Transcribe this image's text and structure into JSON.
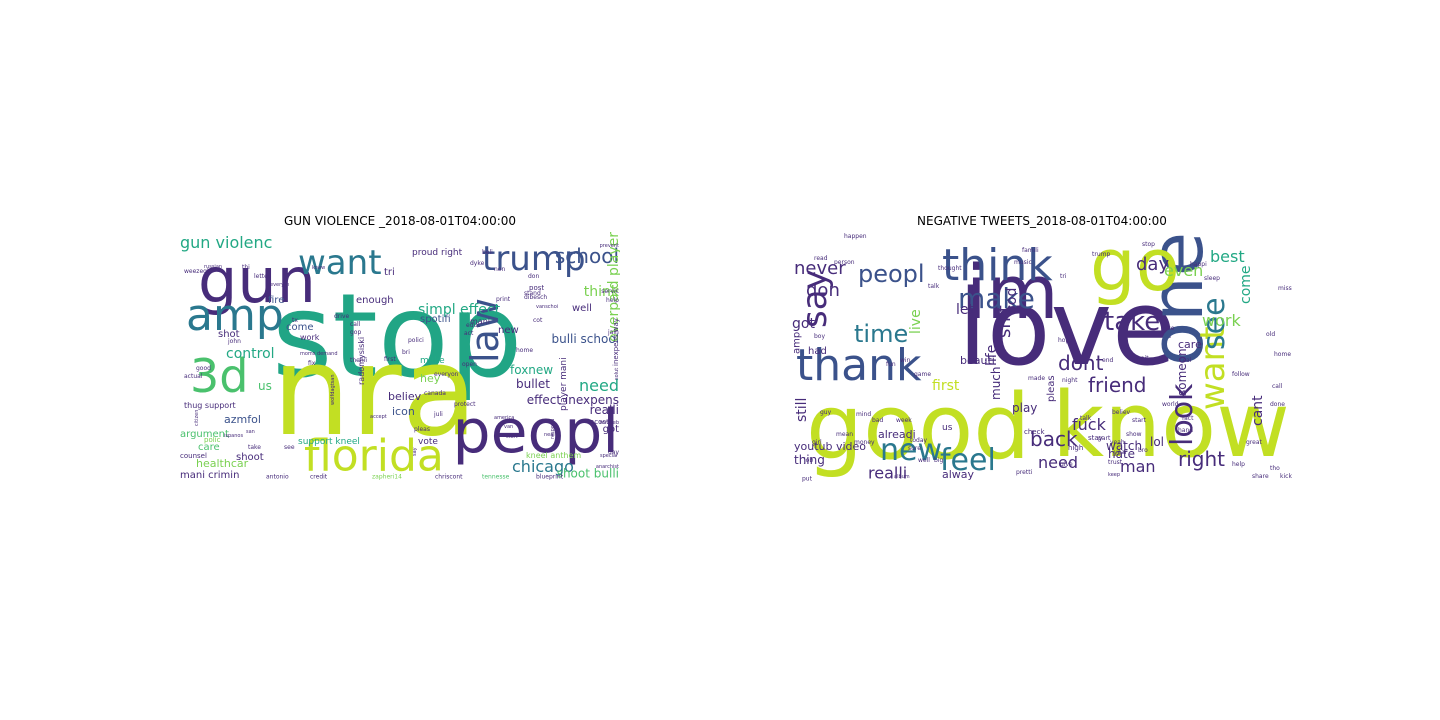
{
  "figure": {
    "panels": [
      {
        "title": "GUN VIOLENCE _2018-08-01T04:00:00",
        "words": [
          {
            "t": "stop",
            "c": "#21a585"
          },
          {
            "t": "nra",
            "c": "#c2df23"
          },
          {
            "t": "gun",
            "c": "#472c7a"
          },
          {
            "t": "peopl",
            "c": "#472c7a"
          },
          {
            "t": "florida",
            "c": "#c2df23"
          },
          {
            "t": "amp",
            "c": "#2a788e"
          },
          {
            "t": "3d",
            "c": "#4ac16d"
          },
          {
            "t": "want",
            "c": "#2a788e"
          },
          {
            "t": "trump",
            "c": "#3b528b"
          },
          {
            "t": "law",
            "c": "#3b528b"
          },
          {
            "t": "school",
            "c": "#3b528b"
          },
          {
            "t": "gun violenc",
            "c": "#22a884"
          },
          {
            "t": "control",
            "c": "#22a884"
          },
          {
            "t": "chicago",
            "c": "#2a788e"
          },
          {
            "t": "simpl effect",
            "c": "#22a884"
          },
          {
            "t": "think",
            "c": "#7ad151"
          },
          {
            "t": "need",
            "c": "#22a884"
          },
          {
            "t": "bulli school",
            "c": "#3b528b"
          },
          {
            "t": "effect inexpens",
            "c": "#472c7a"
          },
          {
            "t": "shoot bulli",
            "c": "#4ac16d"
          },
          {
            "t": "foxnew",
            "c": "#22a884"
          },
          {
            "t": "realli",
            "c": "#472c7a"
          },
          {
            "t": "bullet",
            "c": "#472c7a"
          },
          {
            "t": "fire",
            "c": "#3b528b"
          },
          {
            "t": "azmfol",
            "c": "#3b528b"
          },
          {
            "t": "argument",
            "c": "#4ac16d"
          },
          {
            "t": "healthcar",
            "c": "#7ad151"
          },
          {
            "t": "mani crimin",
            "c": "#472c7a"
          },
          {
            "t": "shoot",
            "c": "#472c7a"
          },
          {
            "t": "care",
            "c": "#4ac16d"
          },
          {
            "t": "icon",
            "c": "#3b528b"
          },
          {
            "t": "believ",
            "c": "#472c7a"
          },
          {
            "t": "us",
            "c": "#4ac16d"
          },
          {
            "t": "hey",
            "c": "#7ad151"
          },
          {
            "t": "enough",
            "c": "#472c7a"
          },
          {
            "t": "spotifi",
            "c": "#3b528b"
          },
          {
            "t": "overpaid player",
            "c": "#7ad151"
          },
          {
            "t": "got",
            "c": "#472c7a"
          },
          {
            "t": "well",
            "c": "#472c7a"
          },
          {
            "t": "shot",
            "c": "#472c7a"
          },
          {
            "t": "come",
            "c": "#3b528b"
          },
          {
            "t": "tri",
            "c": "#472c7a"
          },
          {
            "t": "player mani",
            "c": "#472c7a"
          },
          {
            "t": "new",
            "c": "#472c7a"
          },
          {
            "t": "support kneel",
            "c": "#22a884"
          },
          {
            "t": "vote",
            "c": "#472c7a"
          },
          {
            "t": "proud right",
            "c": "#472c7a"
          },
          {
            "t": "make",
            "c": "#22a884"
          },
          {
            "t": "kneel anthem",
            "c": "#7ad151"
          },
          {
            "t": "radomysiski",
            "c": "#472c7a"
          },
          {
            "t": "thug support",
            "c": "#472c7a"
          },
          {
            "t": "mani",
            "c": "#472c7a"
          },
          {
            "t": "post",
            "c": "#472c7a"
          },
          {
            "t": "work",
            "c": "#472c7a"
          },
          {
            "t": "polic",
            "c": "#7ad151"
          },
          {
            "t": "counsel",
            "c": "#472c7a"
          },
          {
            "t": "credit",
            "c": "#472c7a"
          },
          {
            "t": "antonio",
            "c": "#472c7a"
          },
          {
            "t": "chriscont",
            "c": "#472c7a"
          },
          {
            "t": "tennesse",
            "c": "#4ac16d"
          },
          {
            "t": "blueprint",
            "c": "#472c7a"
          },
          {
            "t": "zapheri14",
            "c": "#7ad151"
          },
          {
            "t": "moms demand",
            "c": "#472c7a"
          },
          {
            "t": "wolfdagtsan",
            "c": "#472c7a"
          },
          {
            "t": "fix",
            "c": "#472c7a"
          },
          {
            "t": "good",
            "c": "#472c7a"
          },
          {
            "t": "actual",
            "c": "#472c7a"
          },
          {
            "t": "citizen",
            "c": "#472c7a"
          },
          {
            "t": "take",
            "c": "#472c7a"
          },
          {
            "t": "san",
            "c": "#472c7a"
          },
          {
            "t": "see",
            "c": "#472c7a"
          },
          {
            "t": "john",
            "c": "#472c7a"
          },
          {
            "t": "first",
            "c": "#472c7a"
          },
          {
            "t": "thehii",
            "c": "#472c7a"
          },
          {
            "t": "everyon",
            "c": "#472c7a"
          },
          {
            "t": "open",
            "c": "#472c7a"
          },
          {
            "t": "home",
            "c": "#472c7a"
          },
          {
            "t": "acosta",
            "c": "#472c7a"
          },
          {
            "t": "educ",
            "c": "#472c7a"
          },
          {
            "t": "act",
            "c": "#472c7a"
          },
          {
            "t": "stand",
            "c": "#472c7a"
          },
          {
            "t": "print",
            "c": "#472c7a"
          },
          {
            "t": "help",
            "c": "#472c7a"
          },
          {
            "t": "servic",
            "c": "#472c7a"
          },
          {
            "t": "prevent",
            "c": "#472c7a"
          },
          {
            "t": "beli",
            "c": "#472c7a"
          },
          {
            "t": "dyke",
            "c": "#472c7a"
          },
          {
            "t": "non",
            "c": "#472c7a"
          },
          {
            "t": "don",
            "c": "#472c7a"
          },
          {
            "t": "weezegk",
            "c": "#472c7a"
          },
          {
            "t": "call",
            "c": "#472c7a"
          },
          {
            "t": "drive",
            "c": "#472c7a"
          },
          {
            "t": "respond",
            "c": "#472c7a"
          },
          {
            "t": "day",
            "c": "#472c7a"
          },
          {
            "t": "special",
            "c": "#472c7a"
          },
          {
            "t": "anarchist",
            "c": "#472c7a"
          },
          {
            "t": "remeeb",
            "c": "#472c7a"
          },
          {
            "t": "america",
            "c": "#472c7a"
          },
          {
            "t": "protect",
            "c": "#472c7a"
          },
          {
            "t": "accept",
            "c": "#472c7a"
          },
          {
            "t": "pleas",
            "c": "#472c7a"
          },
          {
            "t": "juli",
            "c": "#472c7a"
          },
          {
            "t": "canada",
            "c": "#472c7a"
          },
          {
            "t": "start",
            "c": "#472c7a"
          },
          {
            "t": "van",
            "c": "#472c7a"
          },
          {
            "t": "neal",
            "c": "#472c7a"
          },
          {
            "t": "say",
            "c": "#472c7a"
          },
          {
            "t": "everyth",
            "c": "#472c7a"
          },
          {
            "t": "letter",
            "c": "#472c7a"
          },
          {
            "t": "knew",
            "c": "#472c7a"
          },
          {
            "t": "inexpens way",
            "c": "#472c7a"
          },
          {
            "t": "solut",
            "c": "#472c7a"
          },
          {
            "t": "dibesch",
            "c": "#472c7a"
          },
          {
            "t": "vanschoi",
            "c": "#472c7a"
          },
          {
            "t": "cot",
            "c": "#472c7a"
          },
          {
            "t": "jain",
            "c": "#472c7a"
          },
          {
            "t": "thi",
            "c": "#472c7a"
          },
          {
            "t": "russian",
            "c": "#472c7a"
          },
          {
            "t": "ispanos",
            "c": "#472c7a"
          },
          {
            "t": "tx",
            "c": "#472c7a"
          },
          {
            "t": "polici",
            "c": "#472c7a"
          },
          {
            "t": "bri",
            "c": "#472c7a"
          },
          {
            "t": "gop",
            "c": "#472c7a"
          }
        ]
      },
      {
        "title": "NEGATIVE TWEETS_2018-08-01T04:00:00",
        "words": [
          {
            "t": "love",
            "c": "#472c7a"
          },
          {
            "t": "good",
            "c": "#c2df23"
          },
          {
            "t": "know",
            "c": "#c2df23"
          },
          {
            "t": "one",
            "c": "#3b528b"
          },
          {
            "t": "im",
            "c": "#472c7a"
          },
          {
            "t": "go",
            "c": "#c2df23"
          },
          {
            "t": "think",
            "c": "#3b528b"
          },
          {
            "t": "thank",
            "c": "#3b528b"
          },
          {
            "t": "say",
            "c": "#472c7a"
          },
          {
            "t": "peopl",
            "c": "#3b528b"
          },
          {
            "t": "make",
            "c": "#3b528b"
          },
          {
            "t": "take",
            "c": "#472c7a"
          },
          {
            "t": "feel",
            "c": "#2a788e"
          },
          {
            "t": "new",
            "c": "#2a788e"
          },
          {
            "t": "time",
            "c": "#2a788e"
          },
          {
            "t": "want",
            "c": "#c2df23"
          },
          {
            "t": "see",
            "c": "#2a788e"
          },
          {
            "t": "look",
            "c": "#472c7a"
          },
          {
            "t": "back",
            "c": "#472c7a"
          },
          {
            "t": "right",
            "c": "#472c7a"
          },
          {
            "t": "friend",
            "c": "#472c7a"
          },
          {
            "t": "dont",
            "c": "#472c7a"
          },
          {
            "t": "shit",
            "c": "#472c7a"
          },
          {
            "t": "work",
            "c": "#7ad151"
          },
          {
            "t": "best",
            "c": "#22a884"
          },
          {
            "t": "day",
            "c": "#472c7a"
          },
          {
            "t": "never",
            "c": "#472c7a"
          },
          {
            "t": "don",
            "c": "#472c7a"
          },
          {
            "t": "got",
            "c": "#472c7a"
          },
          {
            "t": "realli",
            "c": "#472c7a"
          },
          {
            "t": "need",
            "c": "#472c7a"
          },
          {
            "t": "man",
            "c": "#472c7a"
          },
          {
            "t": "fuck",
            "c": "#472c7a"
          },
          {
            "t": "cant",
            "c": "#472c7a"
          },
          {
            "t": "come",
            "c": "#22a884"
          },
          {
            "t": "even",
            "c": "#7ad151"
          },
          {
            "t": "watch",
            "c": "#472c7a"
          },
          {
            "t": "still",
            "c": "#472c7a"
          },
          {
            "t": "god",
            "c": "#472c7a"
          },
          {
            "t": "live",
            "c": "#7ad151"
          },
          {
            "t": "life",
            "c": "#472c7a"
          },
          {
            "t": "first",
            "c": "#c2df23"
          },
          {
            "t": "much",
            "c": "#472c7a"
          },
          {
            "t": "play",
            "c": "#472c7a"
          },
          {
            "t": "let",
            "c": "#472c7a"
          },
          {
            "t": "beauti",
            "c": "#472c7a"
          },
          {
            "t": "lol",
            "c": "#472c7a"
          },
          {
            "t": "hate",
            "c": "#472c7a"
          },
          {
            "t": "thing",
            "c": "#472c7a"
          },
          {
            "t": "alway",
            "c": "#472c7a"
          },
          {
            "t": "youtub video",
            "c": "#472c7a"
          },
          {
            "t": "alreadi",
            "c": "#472c7a"
          },
          {
            "t": "someon",
            "c": "#472c7a"
          },
          {
            "t": "care",
            "c": "#472c7a"
          },
          {
            "t": "us",
            "c": "#472c7a"
          },
          {
            "t": "pleas",
            "c": "#472c7a"
          },
          {
            "t": "amp",
            "c": "#472c7a"
          },
          {
            "t": "had",
            "c": "#472c7a"
          },
          {
            "t": "well",
            "c": "#472c7a"
          },
          {
            "t": "keep",
            "c": "#472c7a"
          },
          {
            "t": "check",
            "c": "#472c7a"
          },
          {
            "t": "high",
            "c": "#472c7a"
          },
          {
            "t": "stay",
            "c": "#472c7a"
          },
          {
            "t": "today",
            "c": "#472c7a"
          },
          {
            "t": "believ",
            "c": "#472c7a"
          },
          {
            "t": "pretti",
            "c": "#472c7a"
          },
          {
            "t": "trust",
            "c": "#472c7a"
          },
          {
            "t": "game",
            "c": "#472c7a"
          },
          {
            "t": "big",
            "c": "#472c7a"
          },
          {
            "t": "happi",
            "c": "#472c7a"
          },
          {
            "t": "year",
            "c": "#472c7a"
          },
          {
            "t": "trump",
            "c": "#472c7a"
          },
          {
            "t": "girl",
            "c": "#472c7a"
          },
          {
            "t": "give",
            "c": "#472c7a"
          },
          {
            "t": "call",
            "c": "#472c7a"
          },
          {
            "t": "nice",
            "c": "#472c7a"
          },
          {
            "t": "fact",
            "c": "#472c7a"
          },
          {
            "t": "hand",
            "c": "#472c7a"
          },
          {
            "t": "help",
            "c": "#472c7a"
          },
          {
            "t": "talk",
            "c": "#472c7a"
          },
          {
            "t": "bro",
            "c": "#472c7a"
          },
          {
            "t": "yeah",
            "c": "#472c7a"
          },
          {
            "t": "tho",
            "c": "#472c7a"
          },
          {
            "t": "kick",
            "c": "#472c7a"
          },
          {
            "t": "share",
            "c": "#472c7a"
          },
          {
            "t": "album",
            "c": "#472c7a"
          },
          {
            "t": "boy",
            "c": "#472c7a"
          },
          {
            "t": "job",
            "c": "#472c7a"
          },
          {
            "t": "mean",
            "c": "#472c7a"
          },
          {
            "t": "bad",
            "c": "#472c7a"
          },
          {
            "t": "fun",
            "c": "#472c7a"
          },
          {
            "t": "win",
            "c": "#472c7a"
          },
          {
            "t": "show",
            "c": "#472c7a"
          },
          {
            "t": "start",
            "c": "#472c7a"
          },
          {
            "t": "world",
            "c": "#472c7a"
          },
          {
            "t": "part",
            "c": "#472c7a"
          },
          {
            "t": "mind",
            "c": "#472c7a"
          },
          {
            "t": "stop",
            "c": "#472c7a"
          },
          {
            "t": "wait",
            "c": "#472c7a"
          },
          {
            "t": "real",
            "c": "#472c7a"
          },
          {
            "t": "music",
            "c": "#472c7a"
          },
          {
            "t": "read",
            "c": "#472c7a"
          },
          {
            "t": "money",
            "c": "#472c7a"
          },
          {
            "t": "home",
            "c": "#472c7a"
          },
          {
            "t": "night",
            "c": "#472c7a"
          },
          {
            "t": "happen",
            "c": "#472c7a"
          },
          {
            "t": "person",
            "c": "#472c7a"
          },
          {
            "t": "sure",
            "c": "#472c7a"
          },
          {
            "t": "thought",
            "c": "#472c7a"
          },
          {
            "t": "famili",
            "c": "#472c7a"
          },
          {
            "t": "tri",
            "c": "#472c7a"
          },
          {
            "t": "hope",
            "c": "#472c7a"
          },
          {
            "t": "guy",
            "c": "#472c7a"
          },
          {
            "t": "week",
            "c": "#472c7a"
          },
          {
            "t": "old",
            "c": "#472c7a"
          },
          {
            "t": "made",
            "c": "#472c7a"
          },
          {
            "t": "put",
            "c": "#472c7a"
          },
          {
            "t": "end",
            "c": "#472c7a"
          },
          {
            "t": "follow",
            "c": "#472c7a"
          },
          {
            "t": "talk",
            "c": "#472c7a"
          },
          {
            "t": "sleep",
            "c": "#472c7a"
          },
          {
            "t": "done",
            "c": "#472c7a"
          },
          {
            "t": "miss",
            "c": "#472c7a"
          },
          {
            "t": "great",
            "c": "#472c7a"
          }
        ]
      }
    ]
  }
}
